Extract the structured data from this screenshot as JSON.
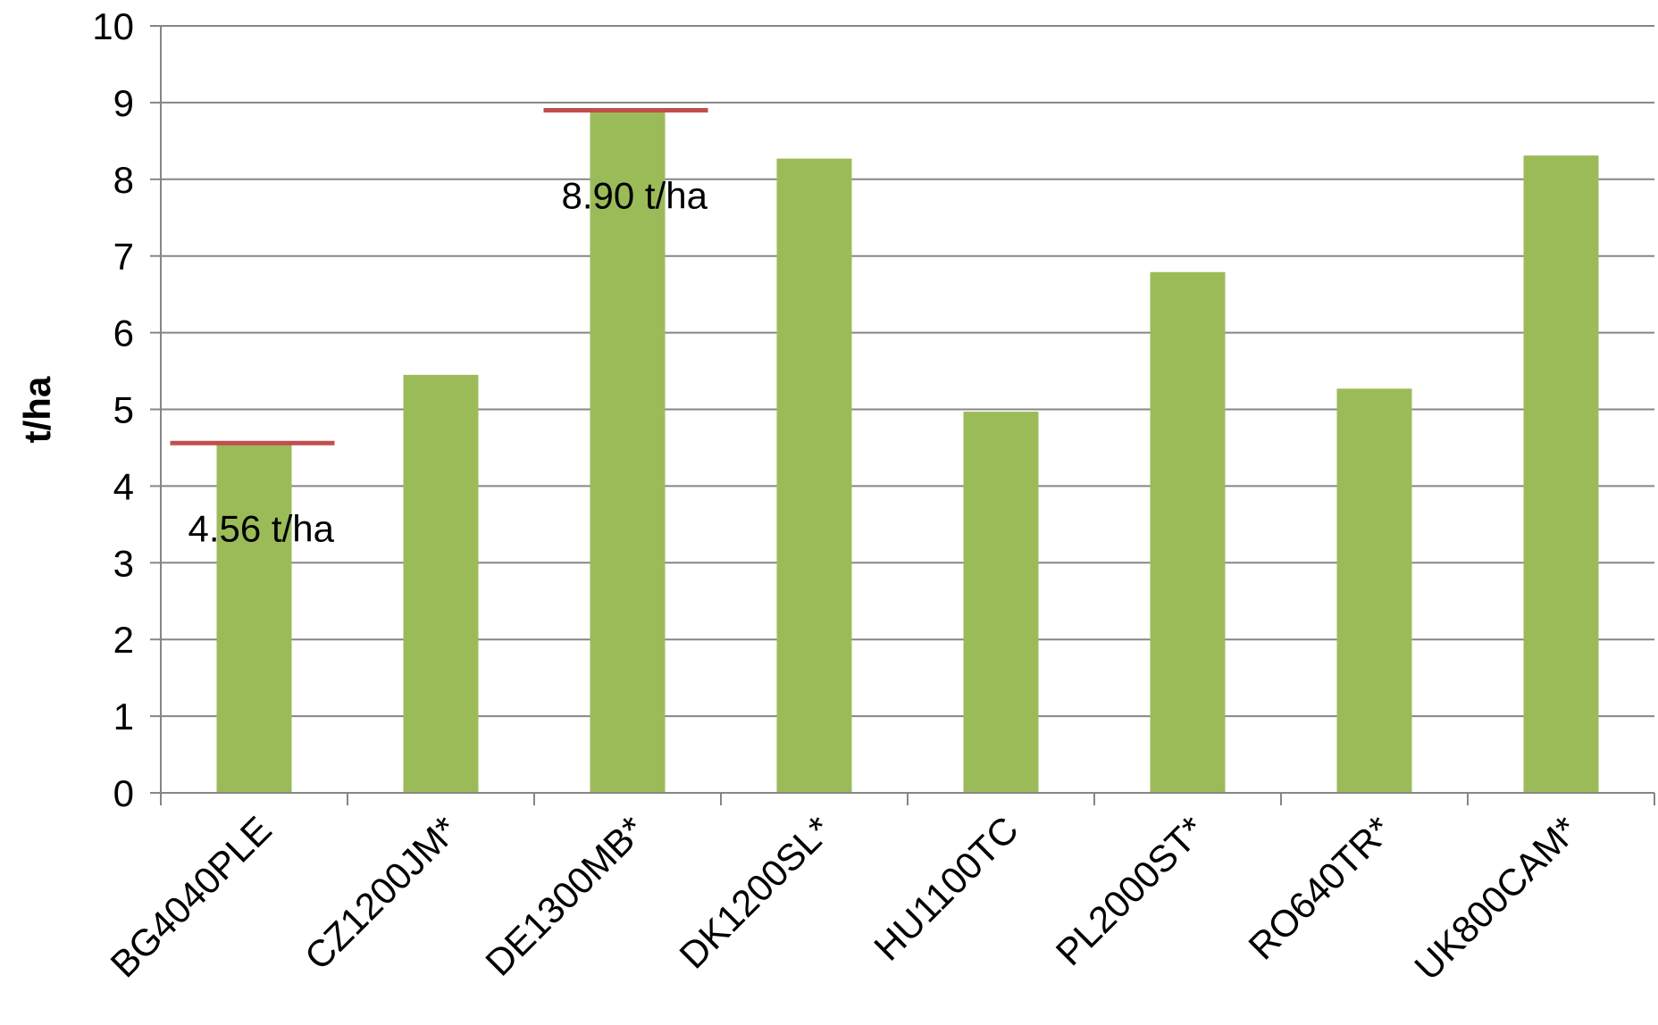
{
  "chart_data": {
    "type": "bar",
    "ylabel": "t/ha",
    "xlabel": "",
    "ylim": [
      0,
      10
    ],
    "yticks": [
      0,
      1,
      2,
      3,
      4,
      5,
      6,
      7,
      8,
      9,
      10
    ],
    "grid": true,
    "categories": [
      "BG4040PLE",
      "CZ1200JM*",
      "DE1300MB*",
      "DK1200SL*",
      "HU1100TC",
      "PL2000ST*",
      "RO640TR*",
      "UK800CAM*"
    ],
    "values": [
      4.56,
      5.45,
      8.9,
      8.27,
      4.97,
      6.79,
      5.27,
      8.31
    ],
    "reference_lines": [
      {
        "category": "BG4040PLE",
        "value": 4.56,
        "label": "4.56 t/ha"
      },
      {
        "category": "DE1300MB*",
        "value": 8.9,
        "label": "8.90 t/ha"
      }
    ],
    "colors": {
      "bar": "#9BBB59",
      "reference_line": "#C0504D",
      "grid": "#868686",
      "axis": "#868686"
    }
  }
}
